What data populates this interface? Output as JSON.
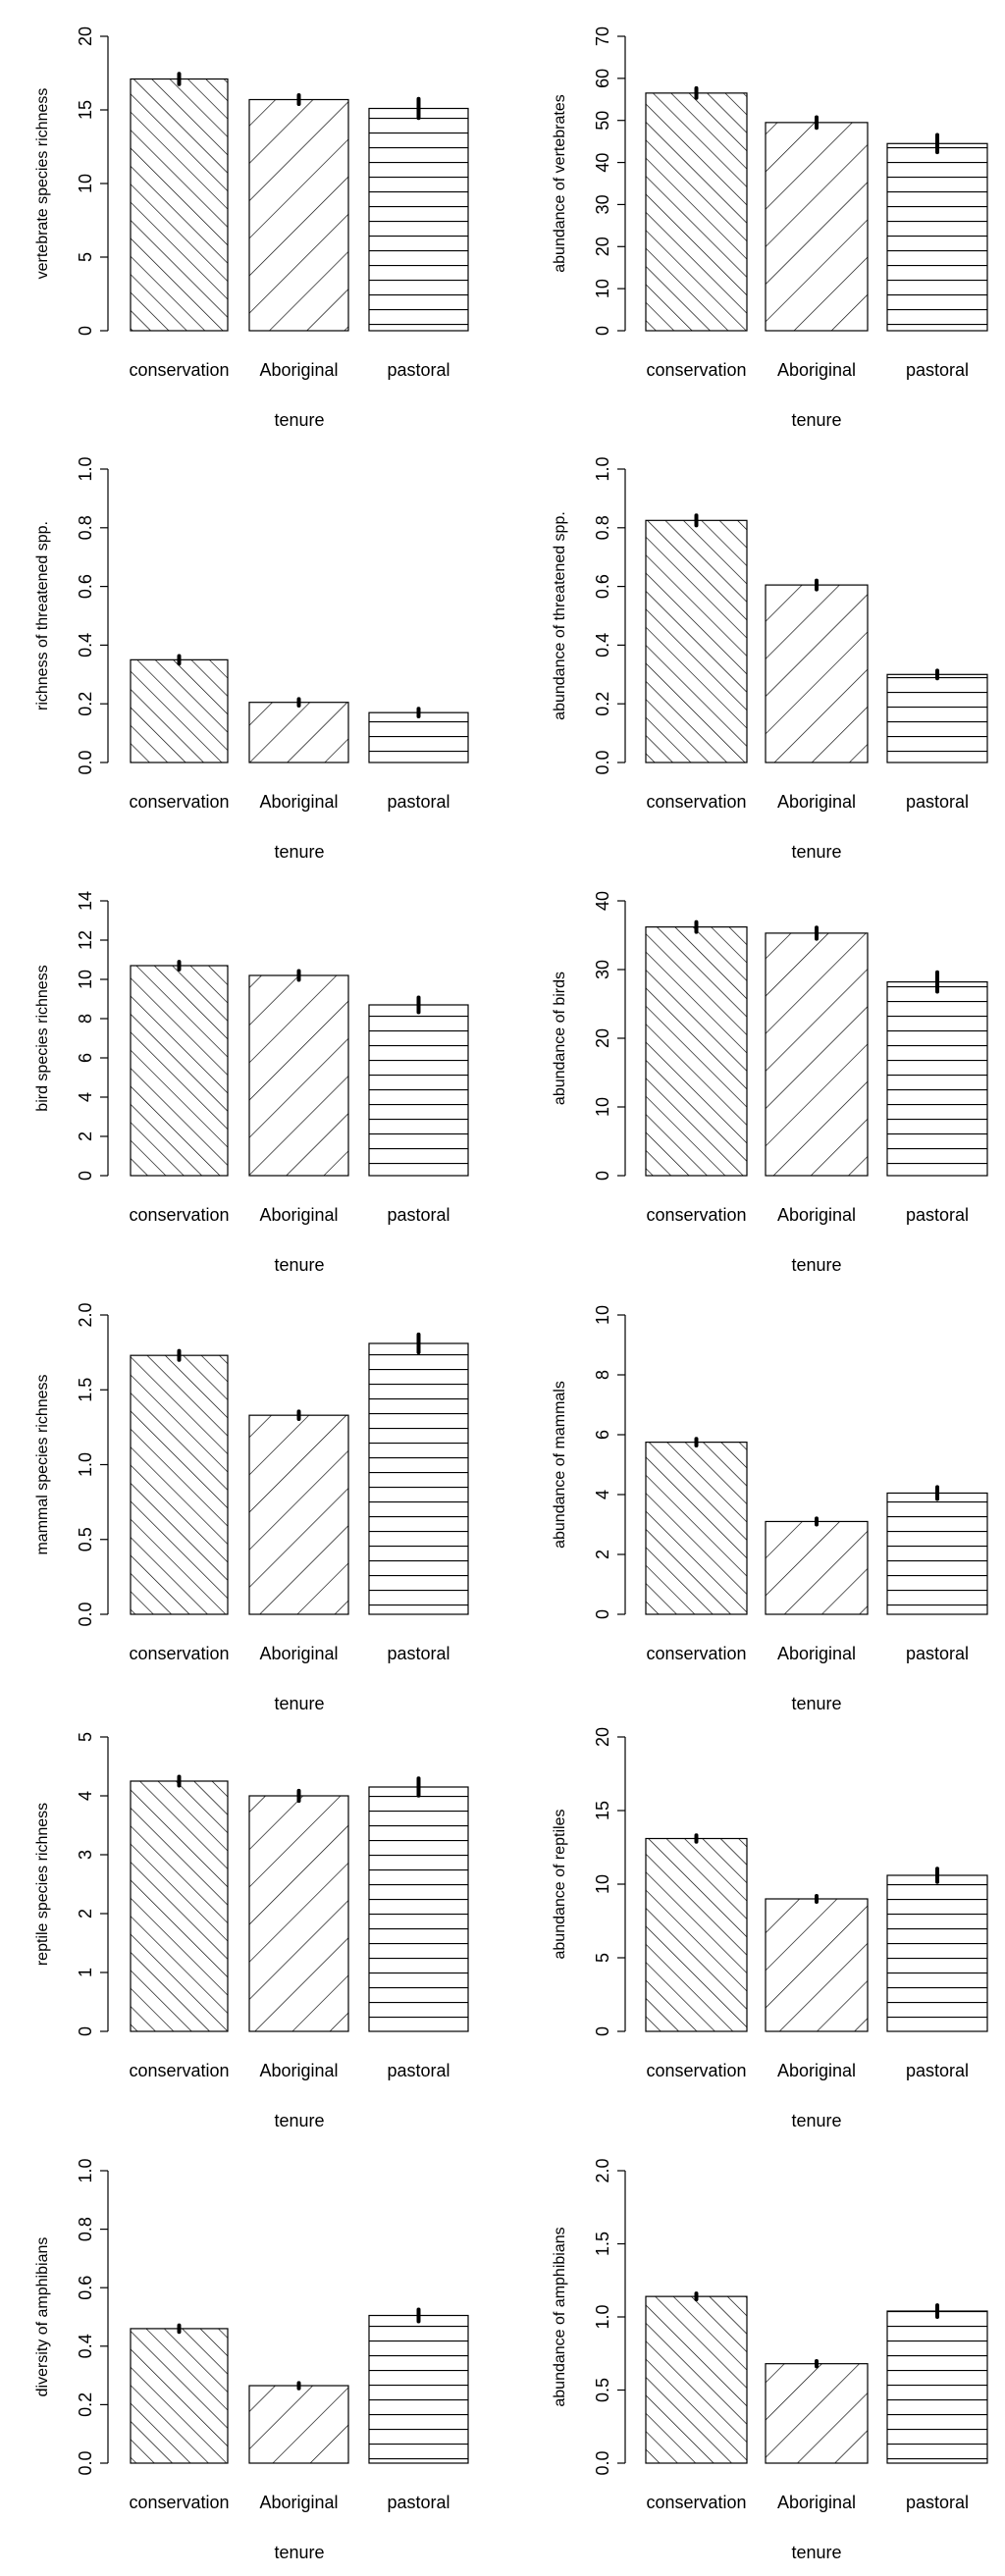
{
  "chart_data": [
    {
      "type": "bar",
      "ylabel": "vertebrate species richness",
      "xlabel": "tenure",
      "categories": [
        "conservation",
        "Aboriginal",
        "pastoral"
      ],
      "values": [
        17.1,
        15.7,
        15.1
      ],
      "errors": [
        0.25,
        0.2,
        0.55
      ],
      "ylim": [
        0,
        20
      ],
      "yticks": [
        "0",
        "5",
        "10",
        "15",
        "20"
      ]
    },
    {
      "type": "bar",
      "ylabel": "abundance of vertebrates",
      "xlabel": "tenure",
      "categories": [
        "conservation",
        "Aboriginal",
        "pastoral"
      ],
      "values": [
        56.5,
        49.5,
        44.5
      ],
      "errors": [
        0.8,
        0.9,
        1.7
      ],
      "ylim": [
        0,
        70
      ],
      "yticks": [
        "0",
        "10",
        "20",
        "30",
        "40",
        "50",
        "60",
        "70"
      ]
    },
    {
      "type": "bar",
      "ylabel": "richness of threatened spp.",
      "xlabel": "tenure",
      "categories": [
        "conservation",
        "Aboriginal",
        "pastoral"
      ],
      "values": [
        0.35,
        0.205,
        0.17
      ],
      "errors": [
        0.008,
        0.006,
        0.008
      ],
      "ylim": [
        0,
        1
      ],
      "yticks": [
        "0.0",
        "0.2",
        "0.4",
        "0.6",
        "0.8",
        "1.0"
      ]
    },
    {
      "type": "bar",
      "ylabel": "abundance of threatened spp.",
      "xlabel": "tenure",
      "categories": [
        "conservation",
        "Aboriginal",
        "pastoral"
      ],
      "values": [
        0.825,
        0.605,
        0.3
      ],
      "errors": [
        0.012,
        0.01,
        0.008
      ],
      "ylim": [
        0,
        1
      ],
      "yticks": [
        "0.0",
        "0.2",
        "0.4",
        "0.6",
        "0.8",
        "1.0"
      ]
    },
    {
      "type": "bar",
      "ylabel": "bird species richness",
      "xlabel": "tenure",
      "categories": [
        "conservation",
        "Aboriginal",
        "pastoral"
      ],
      "values": [
        10.7,
        10.2,
        8.7
      ],
      "errors": [
        0.12,
        0.15,
        0.3
      ],
      "ylim": [
        0,
        14
      ],
      "yticks": [
        "0",
        "2",
        "4",
        "6",
        "8",
        "10",
        "12",
        "14"
      ]
    },
    {
      "type": "bar",
      "ylabel": "abundance of birds",
      "xlabel": "tenure",
      "categories": [
        "conservation",
        "Aboriginal",
        "pastoral"
      ],
      "values": [
        36.2,
        35.3,
        28.2
      ],
      "errors": [
        0.5,
        0.6,
        1.2
      ],
      "ylim": [
        0,
        40
      ],
      "yticks": [
        "0",
        "10",
        "20",
        "30",
        "40"
      ]
    },
    {
      "type": "bar",
      "ylabel": "mammal species richness",
      "xlabel": "tenure",
      "categories": [
        "conservation",
        "Aboriginal",
        "pastoral"
      ],
      "values": [
        1.73,
        1.33,
        1.81
      ],
      "errors": [
        0.02,
        0.015,
        0.05
      ],
      "ylim": [
        0,
        2
      ],
      "yticks": [
        "0.0",
        "0.5",
        "1.0",
        "1.5",
        "2.0"
      ]
    },
    {
      "type": "bar",
      "ylabel": "abundance of mammals",
      "xlabel": "tenure",
      "categories": [
        "conservation",
        "Aboriginal",
        "pastoral"
      ],
      "values": [
        5.75,
        3.1,
        4.05
      ],
      "errors": [
        0.06,
        0.05,
        0.15
      ],
      "ylim": [
        0,
        10
      ],
      "yticks": [
        "0",
        "2",
        "4",
        "6",
        "8",
        "10"
      ]
    },
    {
      "type": "bar",
      "ylabel": "reptile species richness",
      "xlabel": "tenure",
      "categories": [
        "conservation",
        "Aboriginal",
        "pastoral"
      ],
      "values": [
        4.25,
        4.0,
        4.15
      ],
      "errors": [
        0.05,
        0.06,
        0.12
      ],
      "ylim": [
        0,
        5
      ],
      "yticks": [
        "0",
        "1",
        "2",
        "3",
        "4",
        "5"
      ]
    },
    {
      "type": "bar",
      "ylabel": "abundance of reptiles",
      "xlabel": "tenure",
      "categories": [
        "conservation",
        "Aboriginal",
        "pastoral"
      ],
      "values": [
        13.1,
        9.0,
        10.6
      ],
      "errors": [
        0.12,
        0.1,
        0.35
      ],
      "ylim": [
        0,
        20
      ],
      "yticks": [
        "0",
        "5",
        "10",
        "15",
        "20"
      ]
    },
    {
      "type": "bar",
      "ylabel": "diversity of amphibians",
      "xlabel": "tenure",
      "categories": [
        "conservation",
        "Aboriginal",
        "pastoral"
      ],
      "values": [
        0.46,
        0.265,
        0.505
      ],
      "errors": [
        0.006,
        0.004,
        0.015
      ],
      "ylim": [
        0,
        1
      ],
      "yticks": [
        "0.0",
        "0.2",
        "0.4",
        "0.6",
        "0.8",
        "1.0"
      ]
    },
    {
      "type": "bar",
      "ylabel": "abundance of amphibians",
      "xlabel": "tenure",
      "categories": [
        "conservation",
        "Aboriginal",
        "pastoral"
      ],
      "values": [
        1.14,
        0.68,
        1.04
      ],
      "errors": [
        0.01,
        0.008,
        0.03
      ],
      "ylim": [
        0,
        2
      ],
      "yticks": [
        "0.0",
        "0.5",
        "1.0",
        "1.5",
        "2.0"
      ]
    }
  ]
}
